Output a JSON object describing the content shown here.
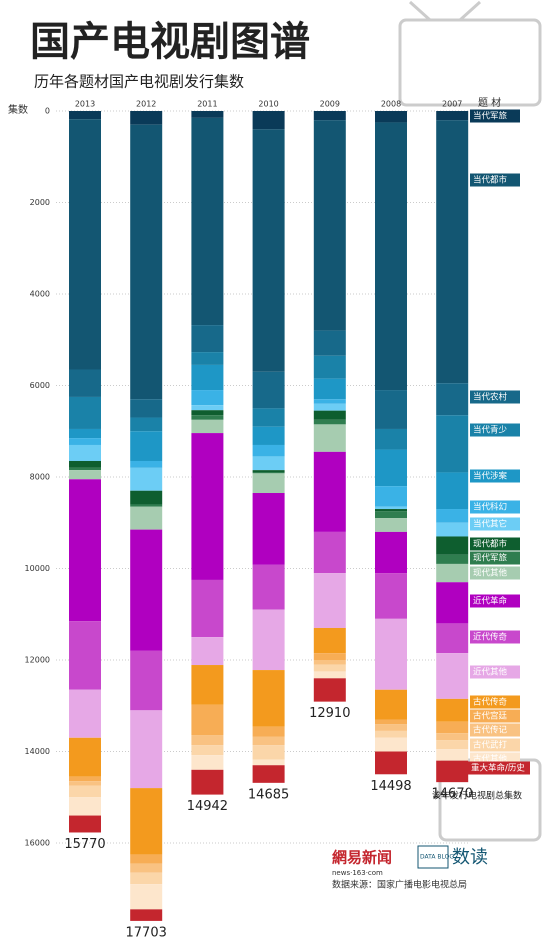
{
  "chart_data": {
    "type": "bar",
    "stacked": true,
    "orientation": "vertical-down",
    "title": "国产电视剧图谱",
    "subtitle": "历年各题材国产电视剧发行集数",
    "y_label": "集数",
    "legend_title": "题 材",
    "totals_note": "该年发行电视剧总集数",
    "source": "数据来源：国家广播电影电视总局",
    "logo_text": "網易新闻",
    "logo_url": "news·163·com",
    "blog_text": "DATA BLOG",
    "blog_name": "数读",
    "categories": [
      "2013",
      "2012",
      "2011",
      "2010",
      "2009",
      "2008",
      "2007"
    ],
    "totals": [
      15770,
      17703,
      14942,
      14685,
      12910,
      14498,
      14670
    ],
    "ylim": [
      0,
      18000
    ],
    "yticks": [
      0,
      2000,
      4000,
      6000,
      8000,
      10000,
      12000,
      14000,
      16000
    ],
    "grid": true,
    "series": [
      {
        "name": "当代军旅",
        "color": "#0a3a58",
        "values": [
          180,
          300,
          150,
          400,
          200,
          250,
          200
        ]
      },
      {
        "name": "当代都市",
        "color": "#135672",
        "values": [
          5470,
          6000,
          4530,
          5300,
          4600,
          5850,
          5750
        ]
      },
      {
        "name": "当代农村",
        "color": "#17698a",
        "values": [
          600,
          400,
          590,
          800,
          550,
          850,
          700
        ]
      },
      {
        "name": "当代青少",
        "color": "#1a82a8",
        "values": [
          700,
          300,
          280,
          400,
          500,
          450,
          1250
        ]
      },
      {
        "name": "当代涉案",
        "color": "#1e97c6",
        "values": [
          200,
          650,
          550,
          400,
          450,
          800,
          800
        ]
      },
      {
        "name": "当代科幻",
        "color": "#3ab2e6",
        "values": [
          150,
          150,
          330,
          250,
          100,
          450,
          300
        ]
      },
      {
        "name": "当代其它",
        "color": "#6ccdf5",
        "values": [
          350,
          500,
          110,
          300,
          150,
          50,
          300
        ]
      },
      {
        "name": "现代都市",
        "color": "#0e5e2f",
        "values": [
          150,
          300,
          110,
          50,
          200,
          50,
          400
        ]
      },
      {
        "name": "现代军旅",
        "color": "#2f7d4f",
        "values": [
          50,
          50,
          100,
          20,
          100,
          150,
          200
        ]
      },
      {
        "name": "现代其他",
        "color": "#a6ccb0",
        "values": [
          200,
          500,
          290,
          430,
          600,
          300,
          400
        ]
      },
      {
        "name": "近代革命",
        "color": "#b000c0",
        "values": [
          3100,
          2650,
          3210,
          1570,
          1750,
          900,
          900
        ]
      },
      {
        "name": "近代传奇",
        "color": "#c848cc",
        "values": [
          1500,
          1300,
          1250,
          980,
          900,
          1000,
          650
        ]
      },
      {
        "name": "近代其他",
        "color": "#e6a8e6",
        "values": [
          1050,
          1700,
          610,
          1320,
          1200,
          1550,
          1000
        ]
      },
      {
        "name": "古代传奇",
        "color": "#f39a1e",
        "values": [
          850,
          1450,
          870,
          1240,
          550,
          650,
          500
        ]
      },
      {
        "name": "古代宫廷",
        "color": "#f7ad55",
        "values": [
          100,
          200,
          660,
          220,
          150,
          100,
          250
        ]
      },
      {
        "name": "古代传记",
        "color": "#f9c282",
        "values": [
          100,
          200,
          220,
          180,
          100,
          150,
          150
        ]
      },
      {
        "name": "古代武打",
        "color": "#fbd6a9",
        "values": [
          250,
          250,
          220,
          320,
          150,
          150,
          200
        ]
      },
      {
        "name": "古代其他",
        "color": "#fde6cc",
        "values": [
          400,
          550,
          320,
          120,
          150,
          300,
          250
        ]
      },
      {
        "name": "重大革命/历史",
        "color": "#c4262e",
        "values": [
          370,
          253,
          542,
          385,
          510,
          498,
          470
        ]
      }
    ]
  }
}
